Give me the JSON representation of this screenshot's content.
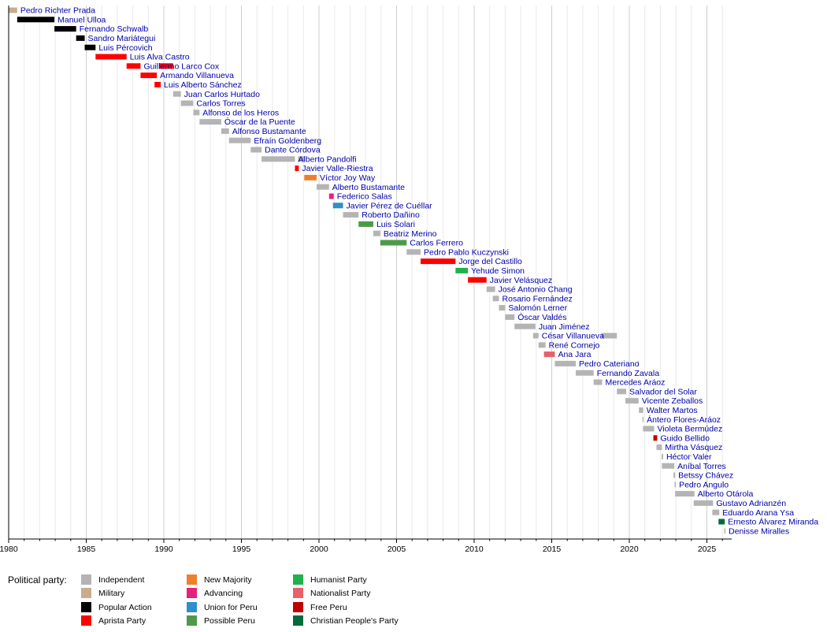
{
  "chart_data": {
    "type": "timeline",
    "title": "",
    "xlim": [
      1980,
      2026.6
    ],
    "x_ticks": [
      1980,
      1985,
      1990,
      1995,
      2000,
      2005,
      2010,
      2015,
      2020,
      2025
    ],
    "grid": "vertical, every year",
    "parties": [
      {
        "name": "Independent",
        "color": "#b4b4b4"
      },
      {
        "name": "Military",
        "color": "#c8ac8c"
      },
      {
        "name": "Popular Action",
        "color": "#000000"
      },
      {
        "name": "Aprista Party",
        "color": "#ff0000"
      },
      {
        "name": "New Majority",
        "color": "#f07f2d"
      },
      {
        "name": "Advancing",
        "color": "#e7207c"
      },
      {
        "name": "Union for Peru",
        "color": "#2e8fca"
      },
      {
        "name": "Possible Peru",
        "color": "#4c9a49"
      },
      {
        "name": "Humanist Party",
        "color": "#20b14c"
      },
      {
        "name": "Nationalist Party",
        "color": "#e7606a"
      },
      {
        "name": "Free Peru",
        "color": "#c00000"
      },
      {
        "name": "Christian People's Party",
        "color": "#006b3c"
      }
    ],
    "legend_title": "Political party:",
    "bars": [
      {
        "label": "Pedro Richter Prada",
        "start": 1980.0,
        "end": 1980.55,
        "party": "Military"
      },
      {
        "label": "Manuel Ulloa",
        "start": 1980.55,
        "end": 1982.95,
        "party": "Popular Action"
      },
      {
        "label": "Fernando Schwalb",
        "start": 1982.95,
        "end": 1984.35,
        "party": "Popular Action"
      },
      {
        "label": "Sandro Mariátegui",
        "start": 1984.35,
        "end": 1984.9,
        "party": "Popular Action"
      },
      {
        "label": "Luis Pércovich",
        "start": 1984.9,
        "end": 1985.6,
        "party": "Popular Action"
      },
      {
        "label": "Luis Alva Castro",
        "start": 1985.6,
        "end": 1987.6,
        "party": "Aprista Party"
      },
      {
        "label": "Guillermo Larco Cox",
        "start": 1987.6,
        "end": 1988.5,
        "party": "Aprista Party"
      },
      {
        "label": "Guillermo Larco Cox",
        "start": 1989.7,
        "end": 1990.6,
        "party": "Aprista Party"
      },
      {
        "label": "Armando Villanueva",
        "start": 1988.5,
        "end": 1989.55,
        "party": "Aprista Party"
      },
      {
        "label": "Luis Alberto Sánchez",
        "start": 1989.4,
        "end": 1989.8,
        "party": "Aprista Party"
      },
      {
        "label": "Juan Carlos Hurtado",
        "start": 1990.6,
        "end": 1991.1,
        "party": "Independent"
      },
      {
        "label": "Carlos Torres",
        "start": 1991.1,
        "end": 1991.9,
        "party": "Independent"
      },
      {
        "label": "Alfonso de los Heros",
        "start": 1991.9,
        "end": 1992.3,
        "party": "Independent"
      },
      {
        "label": "Óscar de la Puente",
        "start": 1992.3,
        "end": 1993.7,
        "party": "Independent"
      },
      {
        "label": "Alfonso Bustamante",
        "start": 1993.7,
        "end": 1994.2,
        "party": "Independent"
      },
      {
        "label": "Efraín Goldenberg",
        "start": 1994.2,
        "end": 1995.6,
        "party": "Independent"
      },
      {
        "label": "Dante Córdova",
        "start": 1995.6,
        "end": 1996.3,
        "party": "Independent"
      },
      {
        "label": "Alberto Pandolfi",
        "start": 1996.3,
        "end": 1998.45,
        "party": "Independent"
      },
      {
        "label": "Alberto Pandolfi",
        "start": 1998.65,
        "end": 1999.05,
        "party": "Independent"
      },
      {
        "label": "Javier Valle-Riestra",
        "start": 1998.45,
        "end": 1998.7,
        "party": "Aprista Party"
      },
      {
        "label": "Víctor Joy Way",
        "start": 1999.05,
        "end": 1999.85,
        "party": "New Majority"
      },
      {
        "label": "Alberto Bustamante",
        "start": 1999.85,
        "end": 2000.65,
        "party": "Independent"
      },
      {
        "label": "Federico Salas",
        "start": 2000.65,
        "end": 2000.95,
        "party": "Advancing"
      },
      {
        "label": "Javier Pérez de Cuéllar",
        "start": 2000.9,
        "end": 2001.55,
        "party": "Union for Peru"
      },
      {
        "label": "Roberto Dañino",
        "start": 2001.55,
        "end": 2002.55,
        "party": "Independent"
      },
      {
        "label": "Luis Solari",
        "start": 2002.55,
        "end": 2003.5,
        "party": "Possible Peru"
      },
      {
        "label": "Beatriz Merino",
        "start": 2003.5,
        "end": 2003.95,
        "party": "Independent"
      },
      {
        "label": "Carlos Ferrero",
        "start": 2003.95,
        "end": 2005.65,
        "party": "Possible Peru"
      },
      {
        "label": "Pedro Pablo Kuczynski",
        "start": 2005.65,
        "end": 2006.55,
        "party": "Independent"
      },
      {
        "label": "Jorge del Castillo",
        "start": 2006.55,
        "end": 2008.8,
        "party": "Aprista Party"
      },
      {
        "label": "Yehude Simon",
        "start": 2008.8,
        "end": 2009.6,
        "party": "Humanist Party"
      },
      {
        "label": "Javier Velásquez",
        "start": 2009.6,
        "end": 2010.8,
        "party": "Aprista Party"
      },
      {
        "label": "José Antonio Chang",
        "start": 2010.8,
        "end": 2011.35,
        "party": "Independent"
      },
      {
        "label": "Rosario Fernández",
        "start": 2011.2,
        "end": 2011.6,
        "party": "Independent"
      },
      {
        "label": "Salomón Lerner",
        "start": 2011.6,
        "end": 2012.0,
        "party": "Independent"
      },
      {
        "label": "Óscar Valdés",
        "start": 2012.0,
        "end": 2012.6,
        "party": "Independent"
      },
      {
        "label": "Juan Jiménez",
        "start": 2012.6,
        "end": 2013.95,
        "party": "Independent"
      },
      {
        "label": "César Villanueva",
        "start": 2013.8,
        "end": 2014.15,
        "party": "Independent"
      },
      {
        "label": "César Villanueva",
        "start": 2018.2,
        "end": 2019.2,
        "party": "Independent"
      },
      {
        "label": "René Cornejo",
        "start": 2014.15,
        "end": 2014.6,
        "party": "Independent"
      },
      {
        "label": "Ana Jara",
        "start": 2014.5,
        "end": 2015.2,
        "party": "Nationalist Party"
      },
      {
        "label": "Pedro Cateriano",
        "start": 2015.2,
        "end": 2016.55,
        "party": "Independent"
      },
      {
        "label": "Pedro Cateriano",
        "start": 2020.55,
        "end": 2020.62,
        "party": "Independent"
      },
      {
        "label": "Fernando Zavala",
        "start": 2016.55,
        "end": 2017.7,
        "party": "Independent"
      },
      {
        "label": "Mercedes Aráoz",
        "start": 2017.7,
        "end": 2018.25,
        "party": "Independent"
      },
      {
        "label": "Salvador del Solar",
        "start": 2019.2,
        "end": 2019.8,
        "party": "Independent"
      },
      {
        "label": "Vicente Zeballos",
        "start": 2019.75,
        "end": 2020.6,
        "party": "Independent"
      },
      {
        "label": "Walter Martos",
        "start": 2020.62,
        "end": 2020.9,
        "party": "Independent"
      },
      {
        "label": "Ántero Flores-Aráoz",
        "start": 2020.85,
        "end": 2020.92,
        "party": "Independent"
      },
      {
        "label": "Violeta Bermúdez",
        "start": 2020.88,
        "end": 2021.6,
        "party": "Independent"
      },
      {
        "label": "Guido Bellido",
        "start": 2021.55,
        "end": 2021.8,
        "party": "Free Peru"
      },
      {
        "label": "Mirtha Vásquez",
        "start": 2021.75,
        "end": 2022.1,
        "party": "Independent"
      },
      {
        "label": "Héctor Valer",
        "start": 2022.08,
        "end": 2022.18,
        "party": "Independent"
      },
      {
        "label": "Aníbal Torres",
        "start": 2022.1,
        "end": 2022.9,
        "party": "Independent"
      },
      {
        "label": "Betssy Chávez",
        "start": 2022.85,
        "end": 2022.95,
        "party": "Independent"
      },
      {
        "label": "Pedro Angulo",
        "start": 2022.92,
        "end": 2023.0,
        "party": "Independent"
      },
      {
        "label": "Alberto Otárola",
        "start": 2022.95,
        "end": 2024.2,
        "party": "Independent"
      },
      {
        "label": "Gustavo Adrianzén",
        "start": 2024.15,
        "end": 2025.4,
        "party": "Independent"
      },
      {
        "label": "Eduardo Arana Ysa",
        "start": 2025.35,
        "end": 2025.8,
        "party": "Independent"
      },
      {
        "label": "Ernesto Álvarez Miranda",
        "start": 2025.75,
        "end": 2026.15,
        "party": "Christian People's Party"
      },
      {
        "label": "Denisse Miralles",
        "start": 2026.12,
        "end": 2026.2,
        "party": "Independent"
      }
    ]
  }
}
